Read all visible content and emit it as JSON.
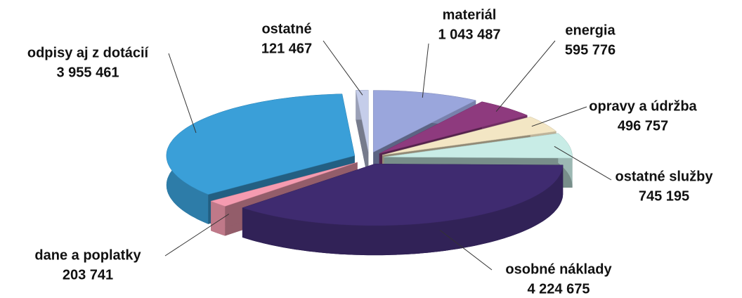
{
  "chart_data": {
    "type": "pie",
    "categories": [
      "materiál",
      "energia",
      "opravy a údržba",
      "ostatné služby",
      "osobné náklady",
      "dane a poplatky",
      "odpisy aj z dotácií",
      "ostatné"
    ],
    "values": [
      1043487,
      595776,
      496757,
      745195,
      4224675,
      203741,
      3955461,
      121467
    ],
    "value_labels": [
      "1 043 487",
      "595 776",
      "496 757",
      "745 195",
      "4 224 675",
      "203 741",
      "3 955 461",
      "121 467"
    ],
    "colors": [
      "#9aa6dc",
      "#8e3a7e",
      "#f3e6c4",
      "#c8ece6",
      "#3f2b70",
      "#f59bb0",
      "#3a9fd8",
      "#c5cdea"
    ]
  }
}
